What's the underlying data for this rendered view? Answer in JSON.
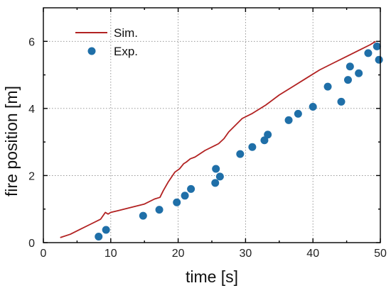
{
  "colors": {
    "sim_line": "#b22222",
    "exp_marker": "#1f6fa8",
    "axes": "#000000",
    "grid": "#8a8a8a"
  },
  "chart_data": {
    "type": "line",
    "title": "",
    "xlabel": "time [s]",
    "ylabel": "fire position [m]",
    "xlim": [
      0,
      50
    ],
    "ylim": [
      0,
      7
    ],
    "xticks": [
      0,
      10,
      20,
      30,
      40,
      50
    ],
    "yticks": [
      0,
      2,
      4,
      6
    ],
    "grid": true,
    "legend_position": "top-left",
    "series": [
      {
        "name": "Sim.",
        "kind": "line",
        "x": [
          2.5,
          4.0,
          5.5,
          7.0,
          8.5,
          9.2,
          9.6,
          10.0,
          11.0,
          13.0,
          15.0,
          16.5,
          17.3,
          17.8,
          18.5,
          19.5,
          20.2,
          20.8,
          21.2,
          21.8,
          22.5,
          24.0,
          25.5,
          26.0,
          26.8,
          27.5,
          28.5,
          29.5,
          31.0,
          33.0,
          35.0,
          37.0,
          39.0,
          41.0,
          43.0,
          45.0,
          47.0,
          48.5,
          49.3
        ],
        "y": [
          0.15,
          0.25,
          0.4,
          0.55,
          0.7,
          0.9,
          0.85,
          0.9,
          0.95,
          1.05,
          1.15,
          1.3,
          1.35,
          1.55,
          1.8,
          2.1,
          2.2,
          2.35,
          2.4,
          2.5,
          2.55,
          2.75,
          2.9,
          2.95,
          3.1,
          3.3,
          3.5,
          3.7,
          3.85,
          4.1,
          4.4,
          4.65,
          4.9,
          5.15,
          5.35,
          5.55,
          5.75,
          5.9,
          6.0
        ]
      },
      {
        "name": "Exp.",
        "kind": "scatter",
        "x": [
          8.2,
          9.3,
          14.8,
          17.2,
          19.8,
          21.0,
          21.9,
          25.5,
          25.6,
          26.2,
          29.2,
          31.0,
          32.8,
          33.3,
          36.4,
          37.8,
          40.0,
          42.2,
          44.2,
          45.2,
          45.5,
          46.8,
          48.2,
          49.5,
          49.8
        ],
        "y": [
          0.18,
          0.38,
          0.8,
          0.98,
          1.2,
          1.4,
          1.6,
          1.78,
          2.2,
          1.97,
          2.64,
          2.85,
          3.05,
          3.22,
          3.65,
          3.84,
          4.05,
          4.65,
          4.2,
          4.85,
          5.25,
          5.05,
          5.65,
          5.85,
          5.45
        ]
      }
    ]
  }
}
